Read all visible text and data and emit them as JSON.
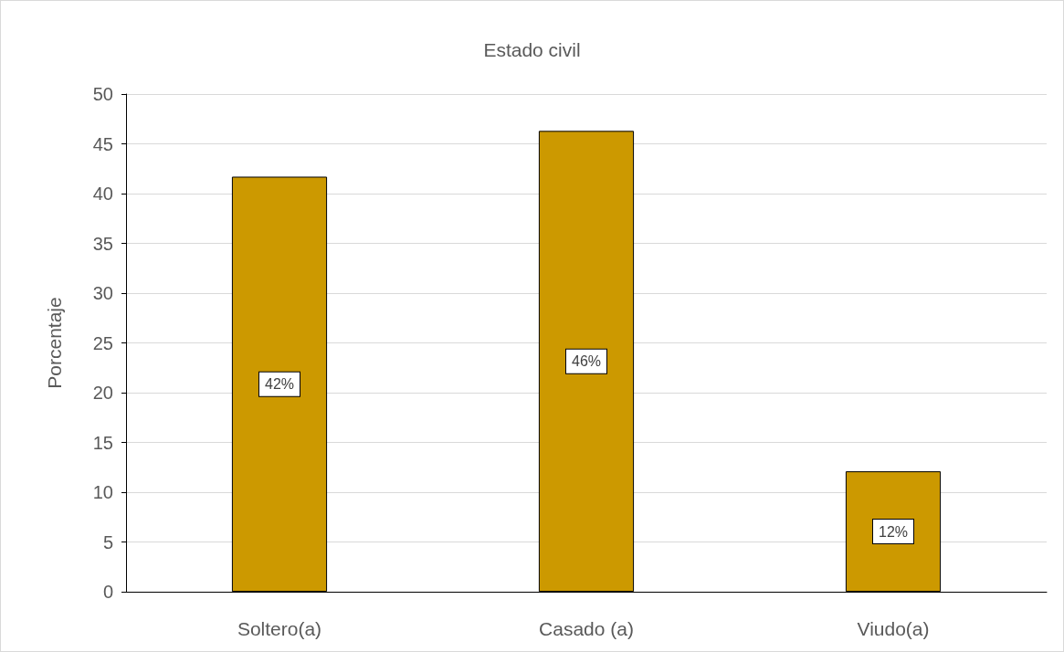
{
  "chart_data": {
    "type": "bar",
    "title": "Estado civil",
    "ylabel": "Porcentaje",
    "categories": [
      "Soltero(a)",
      "Casado (a)",
      "Viudo(a)"
    ],
    "values": [
      41.7,
      46.3,
      12.1
    ],
    "color": "#cc9900",
    "value_labels": [
      "42%",
      "46%",
      "12%"
    ],
    "ylim": [
      0,
      50
    ],
    "yticks": [
      0,
      5,
      10,
      15,
      20,
      25,
      30,
      35,
      40,
      45,
      50
    ],
    "grid": "y"
  }
}
